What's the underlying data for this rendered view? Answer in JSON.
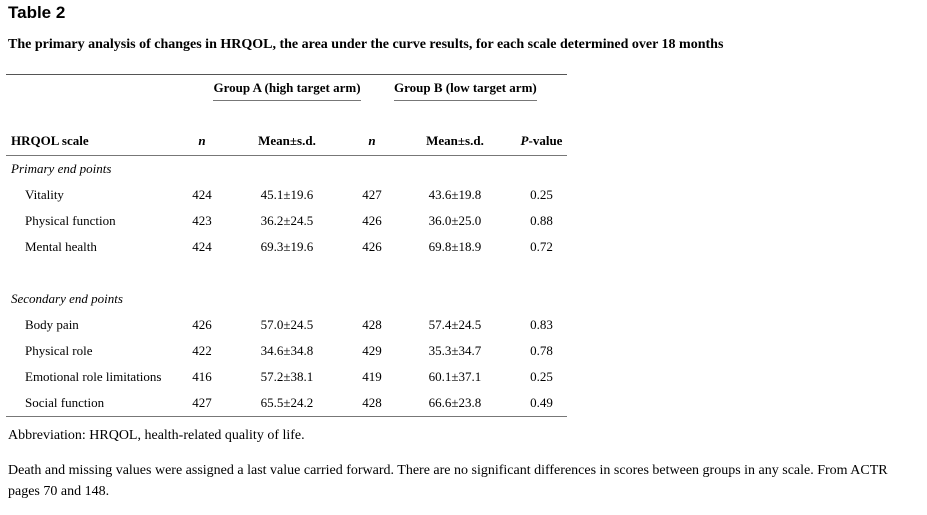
{
  "label": "Table 2",
  "caption": "The primary analysis of changes in HRQOL, the area under the curve results, for each scale determined over 18 months",
  "group_headers": [
    "Group A (high target arm)",
    "Group B (low target arm)"
  ],
  "columns": [
    "HRQOL scale",
    "n",
    "Mean±s.d.",
    "n",
    "Mean±s.d.",
    "P-value"
  ],
  "sections": [
    {
      "title": "Primary end points",
      "rows": [
        {
          "scale": "Vitality",
          "n_a": "424",
          "mean_a": "45.1±19.6",
          "n_b": "427",
          "mean_b": "43.6±19.8",
          "p": "0.25"
        },
        {
          "scale": "Physical function",
          "n_a": "423",
          "mean_a": "36.2±24.5",
          "n_b": "426",
          "mean_b": "36.0±25.0",
          "p": "0.88"
        },
        {
          "scale": "Mental health",
          "n_a": "424",
          "mean_a": "69.3±19.6",
          "n_b": "426",
          "mean_b": "69.8±18.9",
          "p": "0.72"
        }
      ]
    },
    {
      "title": "Secondary end points",
      "rows": [
        {
          "scale": "Body pain",
          "n_a": "426",
          "mean_a": "57.0±24.5",
          "n_b": "428",
          "mean_b": "57.4±24.5",
          "p": "0.83"
        },
        {
          "scale": "Physical role",
          "n_a": "422",
          "mean_a": "34.6±34.8",
          "n_b": "429",
          "mean_b": "35.3±34.7",
          "p": "0.78"
        },
        {
          "scale": "Emotional role limitations",
          "n_a": "416",
          "mean_a": "57.2±38.1",
          "n_b": "419",
          "mean_b": "60.1±37.1",
          "p": "0.25"
        },
        {
          "scale": "Social function",
          "n_a": "427",
          "mean_a": "65.5±24.2",
          "n_b": "428",
          "mean_b": "66.6±23.8",
          "p": "0.49"
        }
      ]
    }
  ],
  "footnotes": [
    "Abbreviation: HRQOL, health-related quality of life.",
    "Death and missing values were assigned a last value carried forward. There are no significant differences in scores between groups in any scale. From ACTR pages 70 and 148."
  ]
}
